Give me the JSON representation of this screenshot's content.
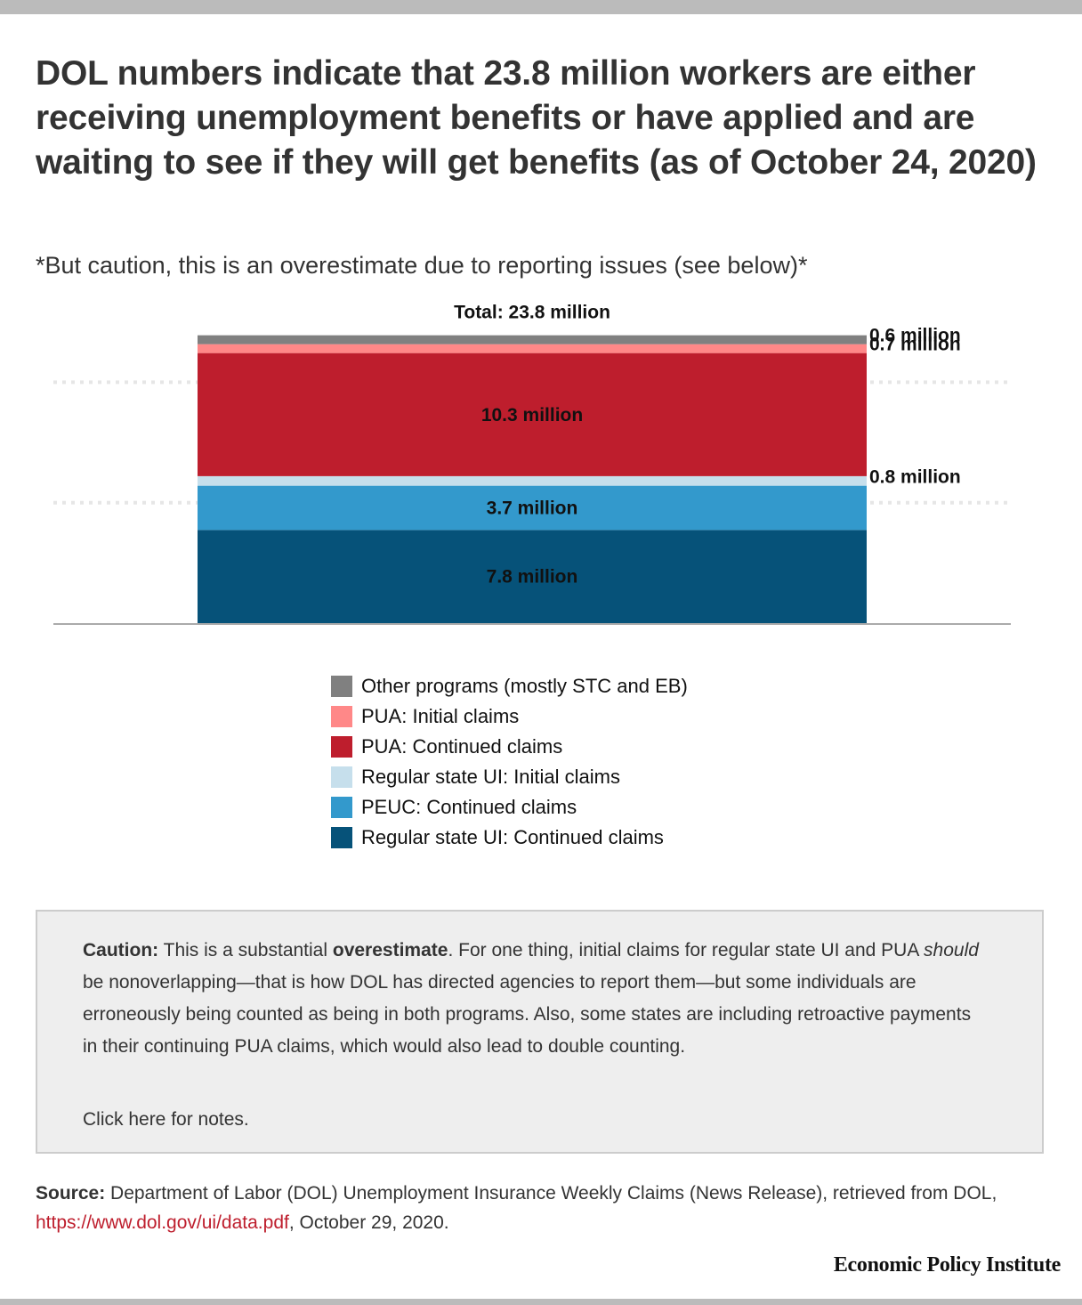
{
  "title": "DOL numbers indicate that 23.8 million workers are either receiving unemployment benefits or have applied and are waiting to see if they will get benefits (as of October 24, 2020)",
  "subtitle": "*But caution, this is an overestimate due to reporting issues (see below)*",
  "chart_data": {
    "type": "bar",
    "stacked": true,
    "categories": [
      "Total"
    ],
    "total_label": "Total: 23.8 million",
    "total": 23.8,
    "ylim": [
      0,
      23.8
    ],
    "grid": true,
    "gridlines": [
      10,
      20
    ],
    "unit": "million",
    "xlabel": "",
    "ylabel": "",
    "legend_position": "bottom",
    "series": [
      {
        "name": "Regular state UI: Continued claims",
        "values": [
          7.8
        ],
        "label": "7.8 million",
        "color": "#065279",
        "label_position": "inside"
      },
      {
        "name": "PEUC: Continued claims",
        "values": [
          3.7
        ],
        "label": "3.7 million",
        "color": "#3399cc",
        "label_position": "inside"
      },
      {
        "name": "Regular state UI: Initial claims",
        "values": [
          0.8
        ],
        "label": "0.8 million",
        "color": "#c6dfec",
        "label_position": "right"
      },
      {
        "name": "PUA: Continued claims",
        "values": [
          10.3
        ],
        "label": "10.3 million",
        "color": "#be1e2d",
        "label_position": "inside"
      },
      {
        "name": "PUA: Initial claims",
        "values": [
          0.7
        ],
        "label": "0.7 million",
        "color": "#ff8888",
        "label_position": "right"
      },
      {
        "name": "Other programs (mostly STC and EB)",
        "values": [
          0.6
        ],
        "label": "0.6 million",
        "color": "#808080",
        "label_position": "right"
      }
    ]
  },
  "legend": [
    {
      "label": "Other programs (mostly STC and EB)",
      "color": "#808080"
    },
    {
      "label": "PUA: Initial claims",
      "color": "#ff8888"
    },
    {
      "label": "PUA: Continued claims",
      "color": "#be1e2d"
    },
    {
      "label": "Regular state UI: Initial claims",
      "color": "#c6dfec"
    },
    {
      "label": "PEUC: Continued claims",
      "color": "#3399cc"
    },
    {
      "label": "Regular state UI: Continued claims",
      "color": "#065279"
    }
  ],
  "caution": {
    "label": "Caution:",
    "text_1": " This is a substantial ",
    "bold_1": "overestimate",
    "text_2": ". For one thing, initial claims for regular state UI and PUA ",
    "italic_1": "should",
    "text_3": " be nonoverlapping—that is how DOL has directed agencies to report them—but some individuals are erroneously being counted as being in both programs. Also, some states are including retroactive payments in their continuing PUA claims, which would also lead to double counting.",
    "notes_link": "Click here for notes."
  },
  "source": {
    "label": "Source:",
    "text_1": " Department of Labor (DOL) Unemployment Insurance Weekly Claims (News Release), retrieved from DOL, ",
    "url": "https://www.dol.gov/ui/data.pdf",
    "text_2": ", October 29, 2020."
  },
  "brand": "Economic Policy Institute",
  "colors": {
    "accent_link": "#be1e2d",
    "frame_bar": "#bbbbbb"
  }
}
